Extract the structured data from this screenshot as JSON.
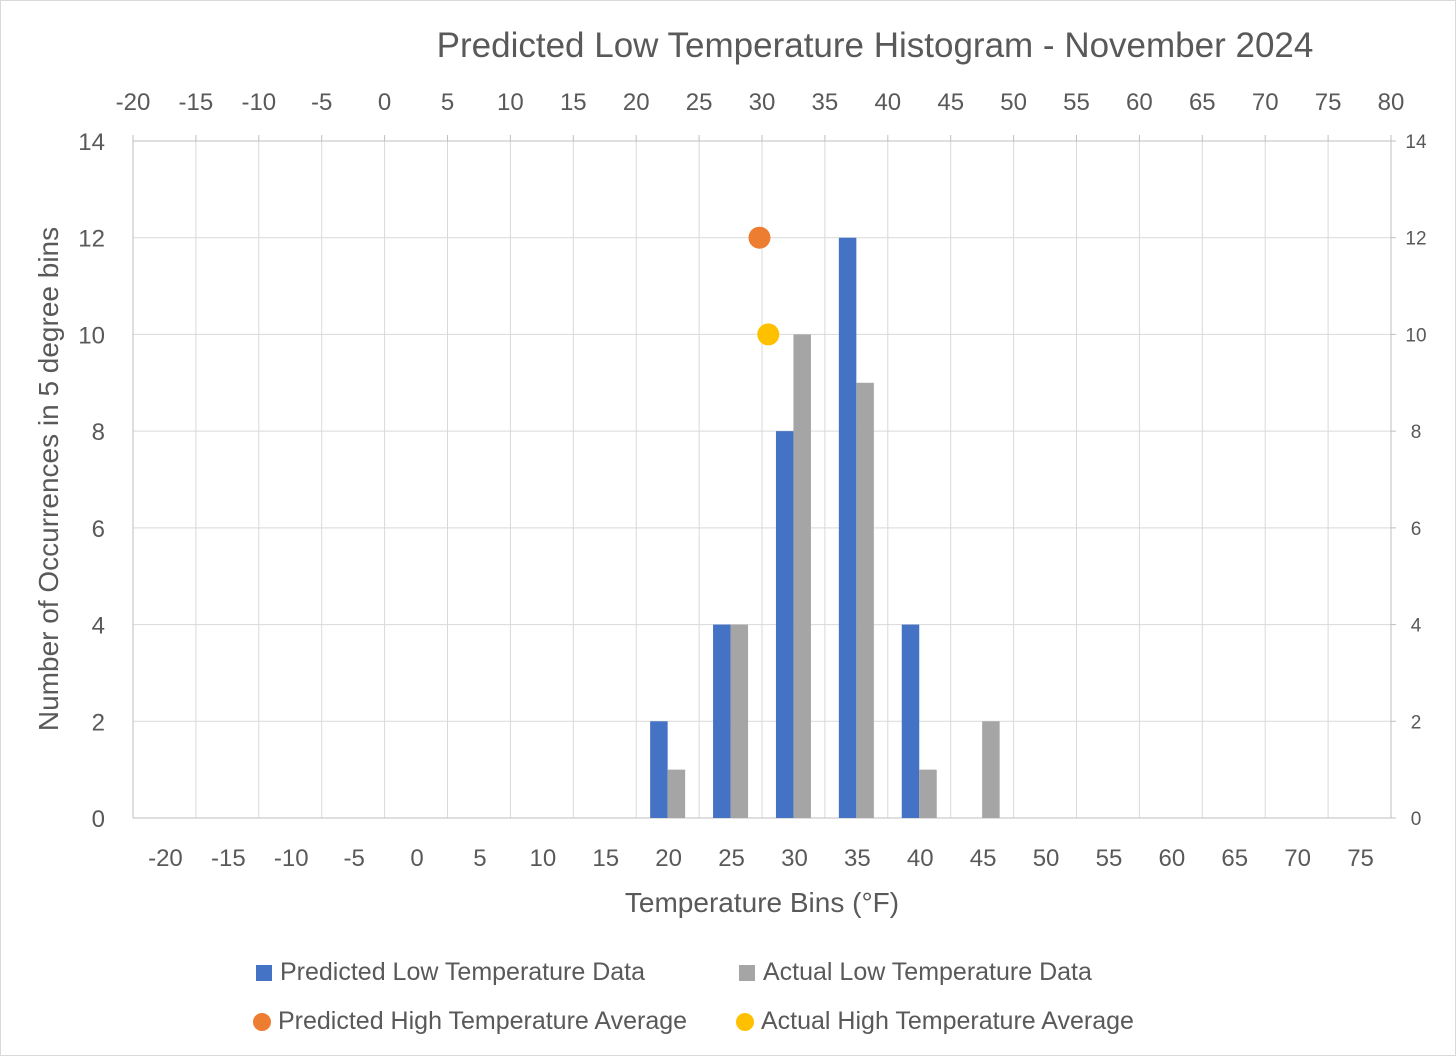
{
  "chart_data": {
    "type": "bar",
    "title": "Predicted Low Temperature Histogram - November 2024",
    "xlabel": "Temperature Bins (°F)",
    "ylabel": "Number of Occurrences in 5 degree bins",
    "categories": [
      "-20",
      "-15",
      "-10",
      "-5",
      "0",
      "5",
      "10",
      "15",
      "20",
      "25",
      "30",
      "35",
      "40",
      "45",
      "50",
      "55",
      "60",
      "65",
      "70",
      "75"
    ],
    "series": [
      {
        "name": "Predicted Low Temperature Data",
        "kind": "bar",
        "color": "#4472c4",
        "values": [
          0,
          0,
          0,
          0,
          0,
          0,
          0,
          0,
          2,
          4,
          8,
          12,
          4,
          0,
          0,
          0,
          0,
          0,
          0,
          0
        ]
      },
      {
        "name": "Actual Low Temperature Data",
        "kind": "bar",
        "color": "#a5a5a5",
        "values": [
          0,
          0,
          0,
          0,
          0,
          0,
          0,
          0,
          1,
          4,
          10,
          9,
          1,
          2,
          0,
          0,
          0,
          0,
          0,
          0
        ]
      },
      {
        "name": "Predicted High Temperature Average",
        "kind": "scatter",
        "color": "#ed7d31",
        "x": 29.8,
        "y": 12
      },
      {
        "name": "Actual High Temperature Average",
        "kind": "scatter",
        "color": "#ffc000",
        "x": 30.5,
        "y": 10
      }
    ],
    "ylim": [
      0,
      14
    ],
    "yticks": [
      0,
      2,
      4,
      6,
      8,
      10,
      12,
      14
    ],
    "secondary_x": {
      "min": -20,
      "max": 80,
      "ticks": [
        "-20",
        "-15",
        "-10",
        "-5",
        "0",
        "5",
        "10",
        "15",
        "20",
        "25",
        "30",
        "35",
        "40",
        "45",
        "50",
        "55",
        "60",
        "65",
        "70",
        "75",
        "80"
      ]
    },
    "secondary_y": {
      "min": 0,
      "max": 14,
      "ticks": [
        "0",
        "2",
        "4",
        "6",
        "8",
        "10",
        "12",
        "14"
      ]
    },
    "grid": true,
    "legend_position": "bottom"
  }
}
